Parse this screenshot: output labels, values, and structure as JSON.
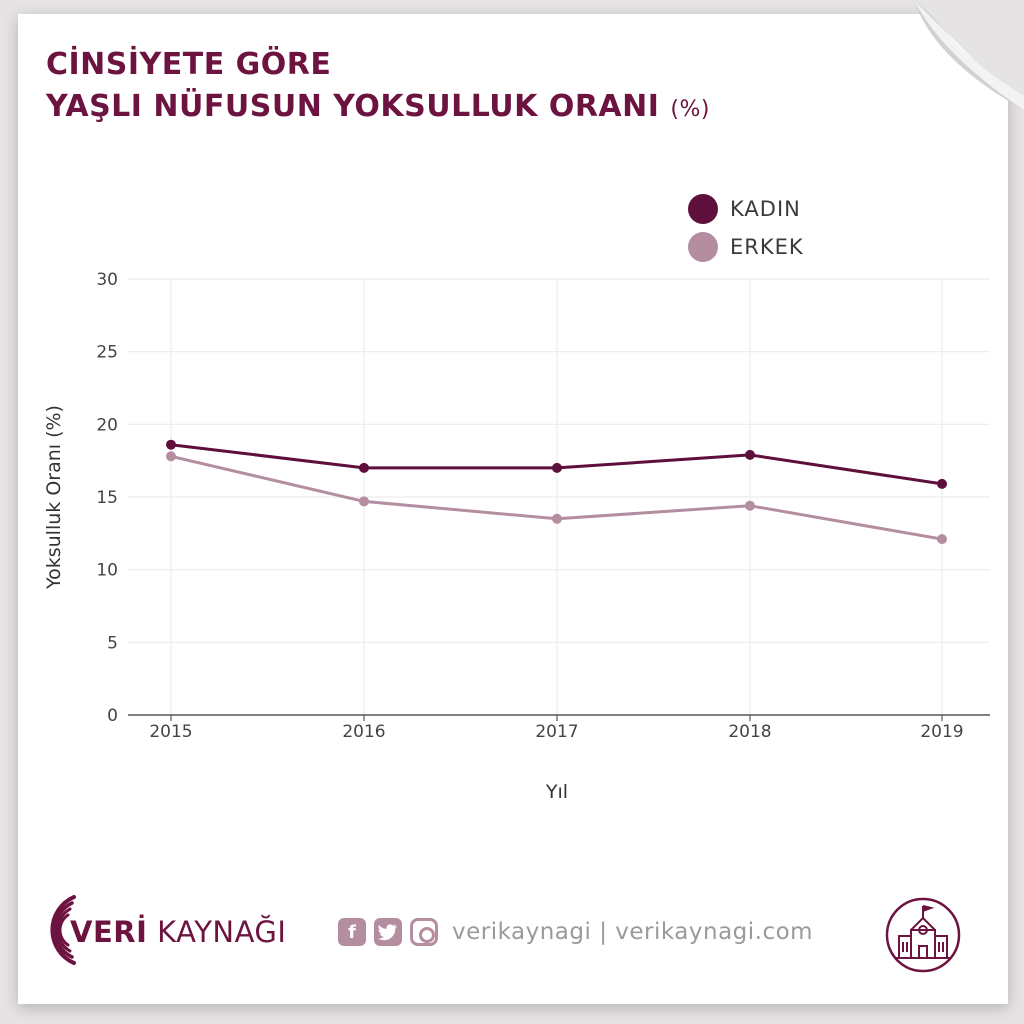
{
  "title": {
    "line1": "CİNSİYETE GÖRE",
    "line2": "YAŞLI NÜFUSUN YOKSULLUK ORANI",
    "unit": "(%)"
  },
  "legend": [
    {
      "label": "KADIN",
      "color": "#5e0f3b"
    },
    {
      "label": "ERKEK",
      "color": "#b48ea0"
    }
  ],
  "chart_data": {
    "type": "line",
    "x": [
      "2015",
      "2016",
      "2017",
      "2018",
      "2019"
    ],
    "series": [
      {
        "name": "KADIN",
        "color": "#5e0f3b",
        "values": [
          18.6,
          17.0,
          17.0,
          17.9,
          15.9
        ]
      },
      {
        "name": "ERKEK",
        "color": "#b48ea0",
        "values": [
          17.8,
          14.7,
          13.5,
          14.4,
          12.1
        ]
      }
    ],
    "xlabel": "Yıl",
    "ylabel": "Yoksulluk Oranı (%)",
    "ylim": [
      0,
      30
    ],
    "yticks": [
      "0",
      "5",
      "10",
      "15",
      "20",
      "25",
      "30"
    ],
    "grid": true,
    "legend_position": "top-right"
  },
  "footer": {
    "brand_bold": "VERİ",
    "brand_light": " KAYNAĞI",
    "social_icons": [
      "facebook-icon",
      "twitter-icon",
      "instagram-icon"
    ],
    "social_text": "verikaynagi | verikaynagi.com"
  }
}
